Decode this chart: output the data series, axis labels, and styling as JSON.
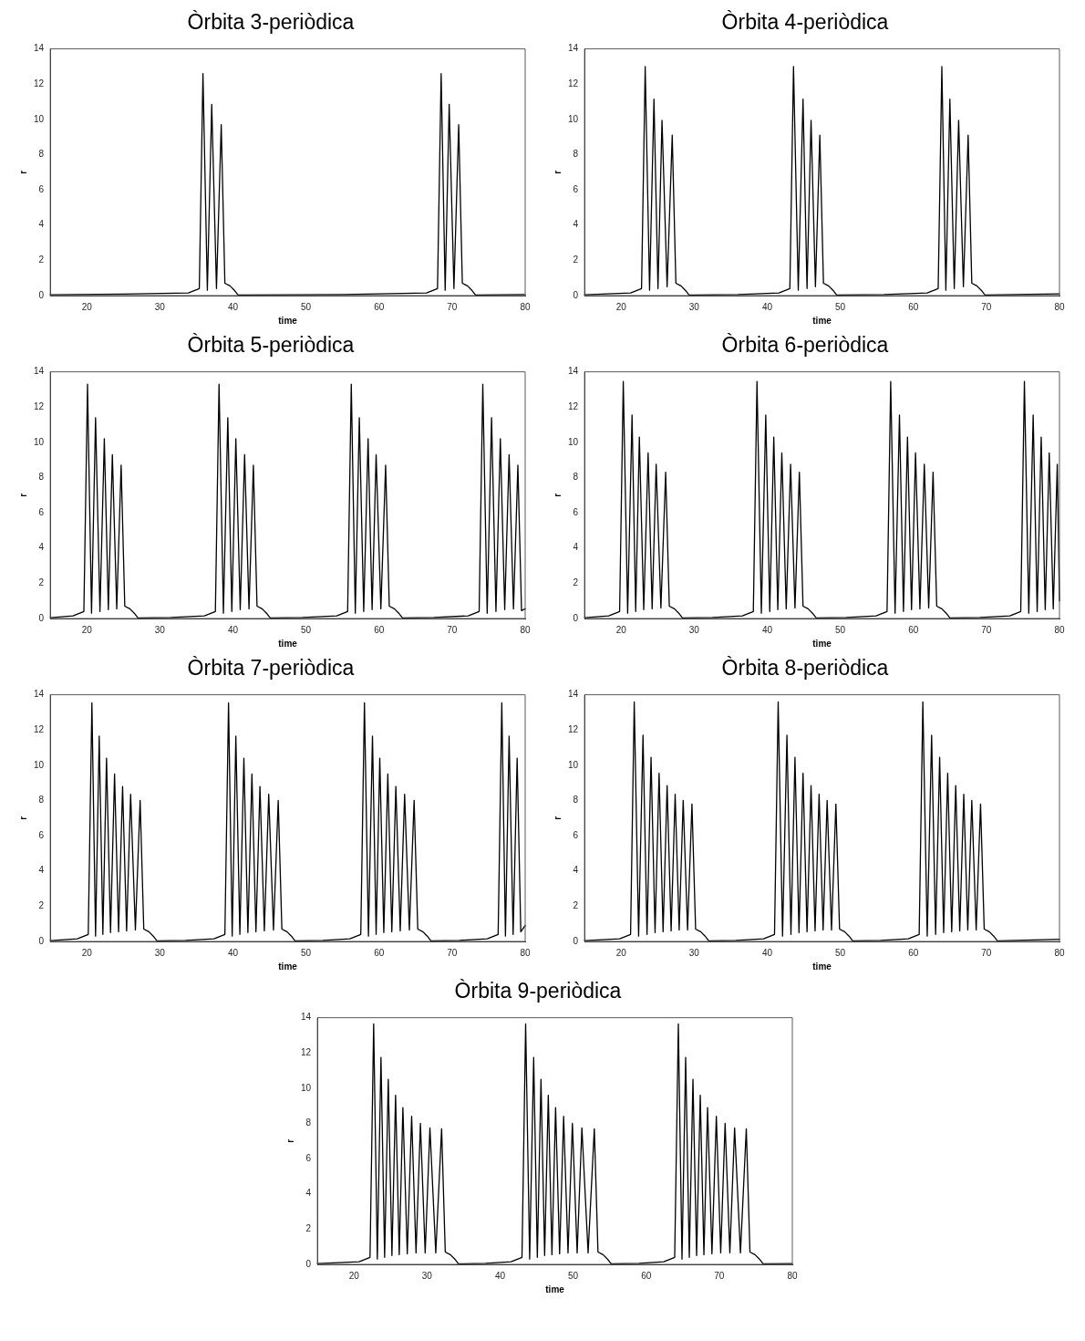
{
  "chart_data": [
    {
      "type": "line",
      "title": "Òrbita 3-periòdica",
      "xlabel": "time",
      "ylabel": "r",
      "color": "#000000",
      "xlim": [
        15,
        80
      ],
      "ylim": [
        0,
        14
      ],
      "xticks": [
        20,
        30,
        40,
        50,
        60,
        70,
        80
      ],
      "yticks": [
        0,
        2,
        4,
        6,
        8,
        10,
        12,
        14
      ],
      "x": [
        15,
        25,
        33.9,
        35.4,
        35.9,
        36.5,
        37.1,
        37.75,
        38.4,
        38.9,
        39.6,
        40.2,
        40.7,
        55,
        66.5,
        68.0,
        68.5,
        69.05,
        69.6,
        70.25,
        70.9,
        71.4,
        72.1,
        72.7,
        73.2,
        80
      ],
      "values": [
        0.05,
        0.08,
        0.15,
        0.4,
        12.6,
        0.3,
        10.85,
        0.4,
        9.7,
        0.7,
        0.55,
        0.3,
        0.03,
        0.06,
        0.15,
        0.4,
        12.6,
        0.3,
        10.85,
        0.4,
        9.7,
        0.7,
        0.55,
        0.3,
        0.03,
        0.06
      ]
    },
    {
      "type": "line",
      "title": "Òrbita 4-periòdica",
      "xlabel": "time",
      "ylabel": "r",
      "color": "#000000",
      "xlim": [
        15,
        80
      ],
      "ylim": [
        0,
        14
      ],
      "xticks": [
        20,
        30,
        40,
        50,
        60,
        70,
        80
      ],
      "yticks": [
        0,
        2,
        4,
        6,
        8,
        10,
        12,
        14
      ],
      "x": [
        15,
        21.3,
        22.8,
        23.3,
        23.9,
        24.5,
        25.05,
        25.6,
        26.3,
        27.0,
        27.5,
        28.2,
        28.8,
        29.3,
        36,
        41.6,
        43.1,
        43.6,
        44.25,
        44.9,
        45.45,
        46.0,
        46.6,
        47.2,
        47.7,
        48.4,
        49.0,
        49.5,
        56,
        61.9,
        63.4,
        63.9,
        64.45,
        65.0,
        65.6,
        66.2,
        66.85,
        67.5,
        68.0,
        68.7,
        69.3,
        69.8,
        80
      ],
      "values": [
        0.05,
        0.15,
        0.4,
        13.0,
        0.3,
        11.15,
        0.4,
        9.95,
        0.5,
        9.1,
        0.7,
        0.55,
        0.3,
        0.03,
        0.06,
        0.15,
        0.4,
        13.0,
        0.3,
        11.15,
        0.4,
        9.95,
        0.5,
        9.1,
        0.7,
        0.55,
        0.3,
        0.03,
        0.06,
        0.15,
        0.4,
        13.0,
        0.3,
        11.15,
        0.4,
        9.95,
        0.5,
        9.1,
        0.7,
        0.55,
        0.3,
        0.03,
        0.1
      ]
    },
    {
      "type": "line",
      "title": "Òrbita 5-periòdica",
      "xlabel": "time",
      "ylabel": "r",
      "color": "#000000",
      "xlim": [
        15,
        80
      ],
      "ylim": [
        0,
        14
      ],
      "xticks": [
        20,
        30,
        40,
        50,
        60,
        70,
        80
      ],
      "yticks": [
        0,
        2,
        4,
        6,
        8,
        10,
        12,
        14
      ],
      "x": [
        15,
        18.1,
        19.6,
        20.1,
        20.65,
        21.2,
        21.8,
        22.4,
        22.95,
        23.5,
        24.1,
        24.7,
        25.2,
        25.9,
        26.5,
        27.0,
        31.5,
        36.1,
        37.6,
        38.1,
        38.7,
        39.3,
        39.85,
        40.4,
        41.0,
        41.6,
        42.2,
        42.8,
        43.3,
        44.0,
        44.6,
        45.1,
        49.5,
        54.2,
        55.7,
        56.2,
        56.75,
        57.3,
        57.9,
        58.5,
        59.05,
        59.6,
        60.25,
        60.9,
        61.4,
        62.1,
        62.7,
        63.2,
        67.5,
        72.2,
        73.7,
        74.2,
        74.8,
        75.4,
        76.0,
        76.6,
        77.2,
        77.8,
        78.4,
        79.0,
        79.5,
        80
      ],
      "values": [
        0.05,
        0.15,
        0.4,
        13.3,
        0.3,
        11.4,
        0.4,
        10.2,
        0.5,
        9.3,
        0.55,
        8.7,
        0.7,
        0.55,
        0.3,
        0.03,
        0.06,
        0.15,
        0.4,
        13.3,
        0.3,
        11.4,
        0.4,
        10.2,
        0.5,
        9.3,
        0.55,
        8.7,
        0.7,
        0.55,
        0.3,
        0.03,
        0.06,
        0.15,
        0.4,
        13.3,
        0.3,
        11.4,
        0.4,
        10.2,
        0.5,
        9.3,
        0.55,
        8.7,
        0.7,
        0.55,
        0.3,
        0.03,
        0.06,
        0.15,
        0.4,
        13.3,
        0.3,
        11.4,
        0.4,
        10.2,
        0.5,
        9.3,
        0.55,
        8.7,
        0.45,
        0.55
      ]
    },
    {
      "type": "line",
      "title": "Òrbita 6-periòdica",
      "xlabel": "time",
      "ylabel": "r",
      "color": "#000000",
      "xlim": [
        15,
        80
      ],
      "ylim": [
        0,
        14
      ],
      "xticks": [
        20,
        30,
        40,
        50,
        60,
        70,
        80
      ],
      "yticks": [
        0,
        2,
        4,
        6,
        8,
        10,
        12,
        14
      ],
      "x": [
        15,
        18.3,
        19.8,
        20.3,
        20.9,
        21.5,
        22.0,
        22.5,
        23.1,
        23.7,
        24.25,
        24.8,
        25.45,
        26.1,
        26.6,
        27.3,
        27.9,
        28.4,
        32.5,
        36.6,
        38.1,
        38.6,
        39.2,
        39.8,
        40.35,
        40.9,
        41.45,
        42.0,
        42.6,
        43.2,
        43.8,
        44.4,
        44.9,
        45.6,
        46.2,
        46.7,
        50.8,
        54.9,
        56.4,
        56.9,
        57.5,
        58.1,
        58.65,
        59.2,
        59.75,
        60.3,
        60.9,
        61.5,
        62.1,
        62.7,
        63.2,
        63.9,
        64.5,
        65.0,
        69.1,
        73.2,
        74.7,
        75.2,
        75.8,
        76.4,
        76.95,
        77.5,
        78.05,
        78.6,
        79.15,
        79.7,
        80
      ],
      "values": [
        0.05,
        0.15,
        0.4,
        13.45,
        0.3,
        11.55,
        0.4,
        10.3,
        0.5,
        9.4,
        0.55,
        8.75,
        0.6,
        8.3,
        0.7,
        0.55,
        0.3,
        0.03,
        0.06,
        0.15,
        0.4,
        13.45,
        0.3,
        11.55,
        0.4,
        10.3,
        0.5,
        9.4,
        0.55,
        8.75,
        0.6,
        8.3,
        0.7,
        0.55,
        0.3,
        0.03,
        0.06,
        0.15,
        0.4,
        13.45,
        0.3,
        11.55,
        0.4,
        10.3,
        0.5,
        9.4,
        0.55,
        8.75,
        0.6,
        8.3,
        0.7,
        0.55,
        0.3,
        0.03,
        0.06,
        0.15,
        0.4,
        13.45,
        0.3,
        11.55,
        0.4,
        10.3,
        0.5,
        9.4,
        0.55,
        8.75,
        1.0
      ]
    },
    {
      "type": "line",
      "title": "Òrbita 7-periòdica",
      "xlabel": "time",
      "ylabel": "r",
      "color": "#000000",
      "xlim": [
        15,
        80
      ],
      "ylim": [
        0,
        14
      ],
      "xticks": [
        20,
        30,
        40,
        50,
        60,
        70,
        80
      ],
      "yticks": [
        0,
        2,
        4,
        6,
        8,
        10,
        12,
        14
      ],
      "x": [
        15,
        18.7,
        20.2,
        20.7,
        21.2,
        21.7,
        22.2,
        22.7,
        23.25,
        23.8,
        24.35,
        24.9,
        25.45,
        26.0,
        26.65,
        27.3,
        27.8,
        28.5,
        29.1,
        29.6,
        33.5,
        37.4,
        38.9,
        39.4,
        39.9,
        40.4,
        40.95,
        41.5,
        42.05,
        42.6,
        43.15,
        43.7,
        44.3,
        44.9,
        45.55,
        46.2,
        46.7,
        47.4,
        48.0,
        48.5,
        52.3,
        56.0,
        57.5,
        58.0,
        58.55,
        59.1,
        59.6,
        60.1,
        60.65,
        61.2,
        61.75,
        62.3,
        62.9,
        63.5,
        64.15,
        64.8,
        65.3,
        66.0,
        66.6,
        67.1,
        71.0,
        74.8,
        76.3,
        76.8,
        77.3,
        77.8,
        78.35,
        78.9,
        79.4,
        80
      ],
      "values": [
        0.05,
        0.15,
        0.4,
        13.55,
        0.3,
        11.65,
        0.4,
        10.4,
        0.5,
        9.5,
        0.55,
        8.8,
        0.6,
        8.35,
        0.65,
        8.0,
        0.7,
        0.55,
        0.3,
        0.03,
        0.06,
        0.15,
        0.4,
        13.55,
        0.3,
        11.65,
        0.4,
        10.4,
        0.5,
        9.5,
        0.55,
        8.8,
        0.6,
        8.35,
        0.65,
        8.0,
        0.7,
        0.55,
        0.3,
        0.03,
        0.06,
        0.15,
        0.4,
        13.55,
        0.3,
        11.65,
        0.4,
        10.4,
        0.5,
        9.5,
        0.55,
        8.8,
        0.6,
        8.35,
        0.65,
        8.0,
        0.7,
        0.55,
        0.3,
        0.03,
        0.06,
        0.15,
        0.4,
        13.55,
        0.3,
        11.65,
        0.4,
        10.4,
        0.55,
        0.9
      ]
    },
    {
      "type": "line",
      "title": "Òrbita 8-periòdica",
      "xlabel": "time",
      "ylabel": "r",
      "color": "#000000",
      "xlim": [
        15,
        80
      ],
      "ylim": [
        0,
        14
      ],
      "xticks": [
        20,
        30,
        40,
        50,
        60,
        70,
        80
      ],
      "yticks": [
        0,
        2,
        4,
        6,
        8,
        10,
        12,
        14
      ],
      "x": [
        15,
        19.8,
        21.3,
        21.8,
        22.4,
        23.0,
        23.55,
        24.1,
        24.65,
        25.2,
        25.75,
        26.3,
        26.85,
        27.4,
        27.95,
        28.5,
        29.1,
        29.7,
        30.2,
        30.9,
        31.5,
        32.0,
        35.7,
        39.5,
        41.0,
        41.5,
        42.1,
        42.7,
        43.25,
        43.8,
        44.35,
        44.9,
        45.45,
        46.0,
        46.55,
        47.1,
        47.65,
        48.2,
        48.8,
        49.4,
        49.9,
        50.6,
        51.2,
        51.7,
        55.5,
        59.3,
        60.8,
        61.3,
        61.9,
        62.5,
        63.05,
        63.6,
        64.15,
        64.7,
        65.25,
        65.8,
        66.35,
        66.9,
        67.45,
        68.0,
        68.6,
        69.2,
        69.7,
        70.4,
        71.0,
        71.5,
        80
      ],
      "values": [
        0.05,
        0.15,
        0.4,
        13.6,
        0.3,
        11.7,
        0.4,
        10.45,
        0.5,
        9.55,
        0.55,
        8.85,
        0.6,
        8.35,
        0.65,
        8.0,
        0.65,
        7.8,
        0.7,
        0.55,
        0.3,
        0.03,
        0.06,
        0.15,
        0.4,
        13.6,
        0.3,
        11.7,
        0.4,
        10.45,
        0.5,
        9.55,
        0.55,
        8.85,
        0.6,
        8.35,
        0.65,
        8.0,
        0.65,
        7.8,
        0.7,
        0.55,
        0.3,
        0.03,
        0.06,
        0.15,
        0.4,
        13.6,
        0.3,
        11.7,
        0.4,
        10.45,
        0.5,
        9.55,
        0.55,
        8.85,
        0.6,
        8.35,
        0.65,
        8.0,
        0.65,
        7.8,
        0.7,
        0.55,
        0.3,
        0.03,
        0.12
      ]
    },
    {
      "type": "line",
      "title": "Òrbita 9-periòdica",
      "xlabel": "time",
      "ylabel": "r",
      "color": "#000000",
      "xlim": [
        15,
        80
      ],
      "ylim": [
        0,
        14
      ],
      "xticks": [
        20,
        30,
        40,
        50,
        60,
        70,
        80
      ],
      "yticks": [
        0,
        2,
        4,
        6,
        8,
        10,
        12,
        14
      ],
      "x": [
        15,
        20.7,
        22.2,
        22.7,
        23.2,
        23.7,
        24.2,
        24.7,
        25.2,
        25.7,
        26.2,
        26.7,
        27.3,
        27.9,
        28.5,
        29.1,
        29.75,
        30.4,
        31.2,
        32.0,
        32.5,
        33.2,
        33.8,
        34.3,
        38,
        41.5,
        43.0,
        43.5,
        44.05,
        44.6,
        45.1,
        45.6,
        46.1,
        46.6,
        47.1,
        47.6,
        48.15,
        48.7,
        49.3,
        49.9,
        50.55,
        51.2,
        52.05,
        52.9,
        53.4,
        54.1,
        54.7,
        55.2,
        59,
        62.4,
        63.9,
        64.4,
        64.9,
        65.4,
        65.9,
        66.4,
        66.9,
        67.4,
        67.9,
        68.4,
        69.0,
        69.6,
        70.2,
        70.8,
        71.45,
        72.1,
        72.9,
        73.7,
        74.2,
        74.9,
        75.5,
        76.0,
        80
      ],
      "values": [
        0.05,
        0.15,
        0.4,
        13.65,
        0.3,
        11.75,
        0.4,
        10.5,
        0.5,
        9.6,
        0.55,
        8.9,
        0.6,
        8.4,
        0.65,
        8.0,
        0.65,
        7.75,
        0.65,
        7.7,
        0.7,
        0.55,
        0.3,
        0.03,
        0.06,
        0.15,
        0.4,
        13.65,
        0.3,
        11.75,
        0.4,
        10.5,
        0.5,
        9.6,
        0.55,
        8.9,
        0.6,
        8.4,
        0.65,
        8.0,
        0.65,
        7.75,
        0.65,
        7.7,
        0.7,
        0.55,
        0.3,
        0.03,
        0.06,
        0.15,
        0.4,
        13.65,
        0.3,
        11.75,
        0.4,
        10.5,
        0.5,
        9.6,
        0.55,
        8.9,
        0.6,
        8.4,
        0.65,
        8.0,
        0.65,
        7.75,
        0.65,
        7.7,
        0.7,
        0.55,
        0.3,
        0.03,
        0.05
      ]
    }
  ]
}
